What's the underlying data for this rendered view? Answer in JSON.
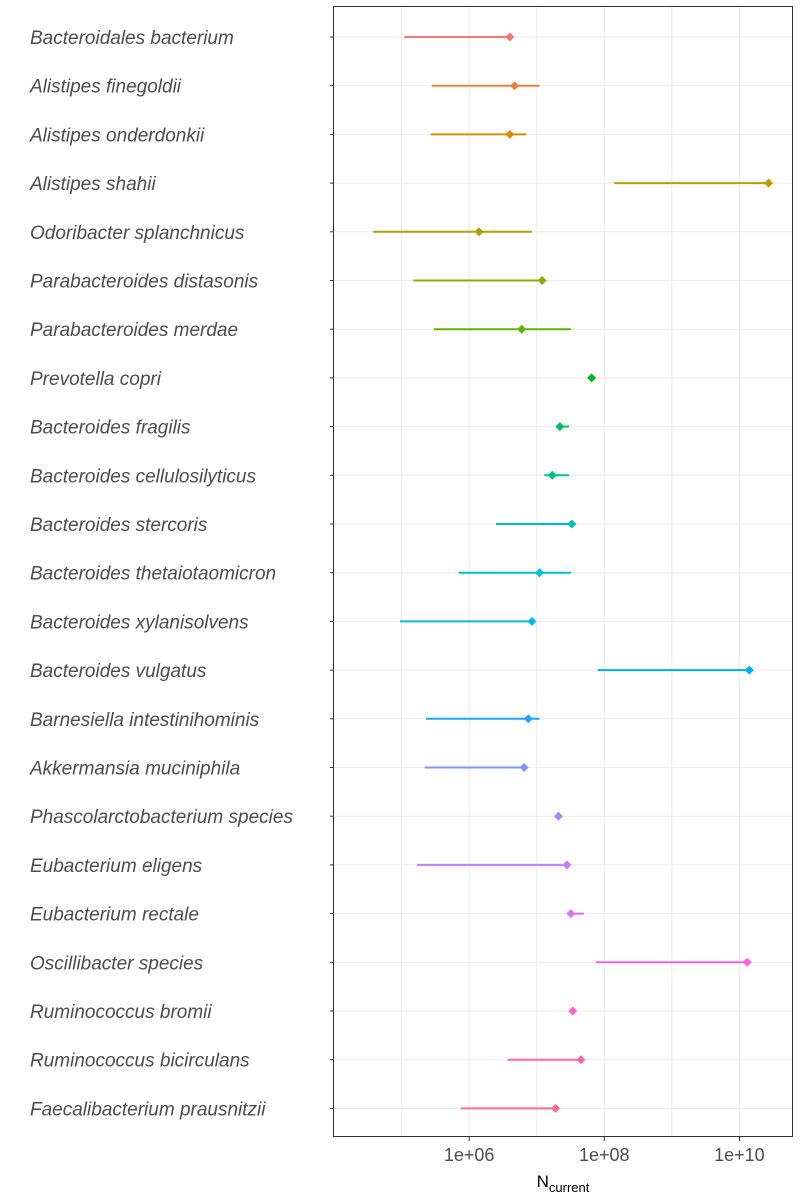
{
  "chart_data": {
    "type": "interval",
    "x_scale": "log10",
    "xlim": [
      10000,
      60000000000
    ],
    "xlabel_main": "N",
    "xlabel_sub": "current",
    "x_ticks": [
      {
        "value": 1000000,
        "label": "1e+06"
      },
      {
        "value": 100000000,
        "label": "1e+08"
      },
      {
        "value": 10000000000,
        "label": "1e+10"
      }
    ],
    "grid": true,
    "rows": [
      {
        "species": "Bacteroidales bacterium",
        "point": 4000000,
        "low": 110000,
        "high": 4000000,
        "color": "#F8766D"
      },
      {
        "species": "Alistipes finegoldii",
        "point": 4700000,
        "low": 280000,
        "high": 11000000,
        "color": "#EC8239"
      },
      {
        "species": "Alistipes onderdonkii",
        "point": 4000000,
        "low": 270000,
        "high": 7000000,
        "color": "#DB8E00"
      },
      {
        "species": "Alistipes shahii",
        "point": 27000000000,
        "low": 140000000,
        "high": 27000000000,
        "color": "#C79800"
      },
      {
        "species": "Odoribacter splanchnicus",
        "point": 1400000,
        "low": 38000,
        "high": 8500000,
        "color": "#AEA200"
      },
      {
        "species": "Parabacteroides distasonis",
        "point": 12000000,
        "low": 150000,
        "high": 12000000,
        "color": "#8FAA00"
      },
      {
        "species": "Parabacteroides merdae",
        "point": 6000000,
        "low": 300000,
        "high": 32000000,
        "color": "#64B200"
      },
      {
        "species": "Prevotella copri",
        "point": 65000000,
        "low": 65000000,
        "high": 65000000,
        "color": "#00B81B"
      },
      {
        "species": "Bacteroides fragilis",
        "point": 22000000,
        "low": 20000000,
        "high": 30000000,
        "color": "#00BD5C"
      },
      {
        "species": "Bacteroides cellulosilyticus",
        "point": 17000000,
        "low": 13000000,
        "high": 30000000,
        "color": "#00C08D"
      },
      {
        "species": "Bacteroides stercoris",
        "point": 33000000,
        "low": 2500000,
        "high": 33000000,
        "color": "#00C1B2"
      },
      {
        "species": "Bacteroides thetaiotaomicron",
        "point": 11000000,
        "low": 700000,
        "high": 32000000,
        "color": "#00BFD2"
      },
      {
        "species": "Bacteroides xylanisolvens",
        "point": 8500000,
        "low": 95000,
        "high": 8500000,
        "color": "#00B8E5"
      },
      {
        "species": "Bacteroides vulgatus",
        "point": 14000000000,
        "low": 80000000,
        "high": 14000000000,
        "color": "#00ADFA"
      },
      {
        "species": "Barnesiella intestinihominis",
        "point": 7500000,
        "low": 230000,
        "high": 11000000,
        "color": "#22A3FF"
      },
      {
        "species": "Akkermansia muciniphila",
        "point": 6500000,
        "low": 220000,
        "high": 6500000,
        "color": "#7C96FF"
      },
      {
        "species": "Phascolarctobacterium species",
        "point": 21000000,
        "low": 21000000,
        "high": 21000000,
        "color": "#A58AFF"
      },
      {
        "species": "Eubacterium eligens",
        "point": 28000000,
        "low": 170000,
        "high": 28000000,
        "color": "#C77CFF"
      },
      {
        "species": "Eubacterium rectale",
        "point": 32000000,
        "low": 32000000,
        "high": 50000000,
        "color": "#E36EF6"
      },
      {
        "species": "Oscillibacter species",
        "point": 13000000000,
        "low": 75000000,
        "high": 13000000000,
        "color": "#F366E0"
      },
      {
        "species": "Ruminococcus bromii",
        "point": 34000000,
        "low": 34000000,
        "high": 34000000,
        "color": "#FF61C9"
      },
      {
        "species": "Ruminococcus bicirculans",
        "point": 45000000,
        "low": 3700000,
        "high": 45000000,
        "color": "#FF65AE"
      },
      {
        "species": "Faecalibacterium prausnitzii",
        "point": 19000000,
        "low": 750000,
        "high": 19000000,
        "color": "#FF6C91"
      }
    ]
  }
}
